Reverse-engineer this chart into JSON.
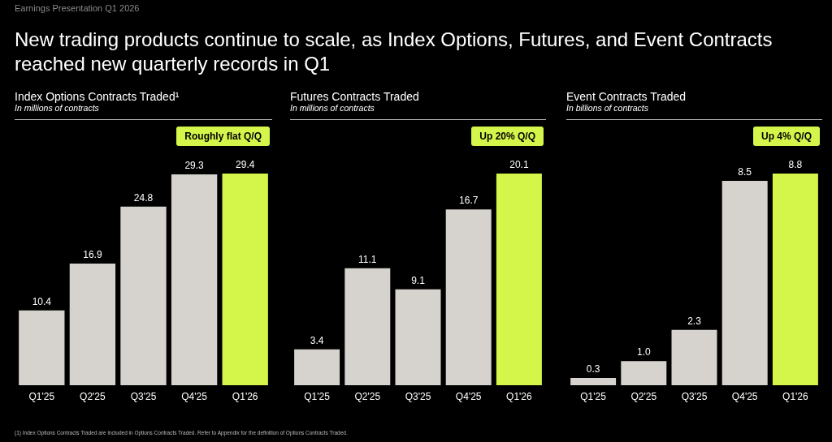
{
  "chart_data": [
    {
      "type": "other",
      "subtitle": "Earnings Presentation Q1 2026",
      "title": "New trading products continue to scale, as Index Options, Futures, and Event Contracts reached new quarterly records in Q1",
      "annotations": [
        "(1) Index Options Contracts Traded are included in Options Contracts Traded. Refer to Appendix for the definition of Options Contracts Traded."
      ]
    },
    {
      "type": "bar",
      "title": "Index Options Contracts Traded¹",
      "subtitle": "In millions of contracts",
      "annotations": [
        "Roughly flat Q/Q"
      ],
      "categories": [
        "Q1'25",
        "Q2'25",
        "Q3'25",
        "Q4'25",
        "Q1'26"
      ],
      "values": [
        10.4,
        16.9,
        24.8,
        29.3,
        29.4
      ],
      "colors": [
        "#d6d3ce",
        "#d6d3ce",
        "#d6d3ce",
        "#d6d3ce",
        "#d4f54a"
      ],
      "data_labels": true
    },
    {
      "type": "bar",
      "title": "Futures Contracts Traded",
      "subtitle": "In millions of contracts",
      "annotations": [
        "Up 20% Q/Q"
      ],
      "categories": [
        "Q1'25",
        "Q2'25",
        "Q3'25",
        "Q4'25",
        "Q1'26"
      ],
      "values": [
        3.4,
        11.1,
        9.1,
        16.7,
        20.1
      ],
      "colors": [
        "#d6d3ce",
        "#d6d3ce",
        "#d6d3ce",
        "#d6d3ce",
        "#d4f54a"
      ],
      "data_labels": true
    },
    {
      "type": "bar",
      "title": "Event Contracts Traded",
      "subtitle": "In billions of contracts",
      "annotations": [
        "Up 4% Q/Q"
      ],
      "categories": [
        "Q1'25",
        "Q2'25",
        "Q3'25",
        "Q4'25",
        "Q1'26"
      ],
      "values": [
        0.3,
        1.0,
        2.3,
        8.5,
        8.8
      ],
      "value_labels": [
        "0.3",
        "1.0",
        "2.3",
        "8.5",
        "8.8"
      ],
      "colors": [
        "#d6d3ce",
        "#d6d3ce",
        "#d6d3ce",
        "#d6d3ce",
        "#d4f54a"
      ]
    }
  ]
}
